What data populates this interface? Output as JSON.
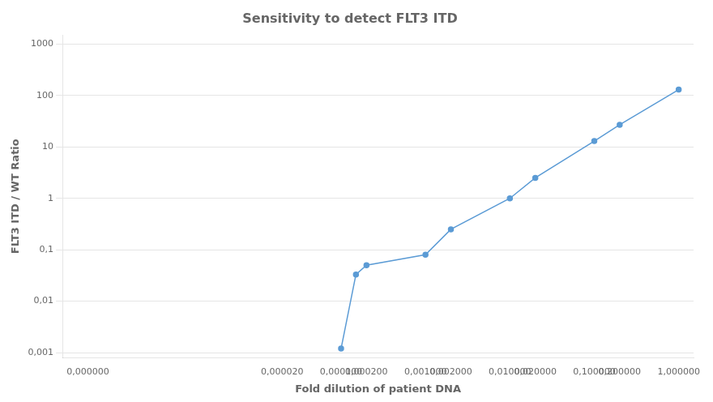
{
  "chart_data": {
    "type": "line",
    "title": "Sensitivity to detect FLT3 ITD",
    "x_label": "Fold dilution of patient DNA",
    "y_label": "FLT3 ITD / WT Ratio",
    "x": [
      0.0001,
      0.00015,
      0.0002,
      0.001,
      0.002,
      0.01,
      0.02,
      0.1,
      0.2,
      1.0
    ],
    "values": [
      0.0012,
      0.033,
      0.05,
      0.08,
      0.25,
      1.0,
      2.5,
      13.0,
      27.0,
      130.0
    ],
    "color": "#5b9bd5",
    "marker": "circle",
    "log": true,
    "grid": "y",
    "xlim": [
      5e-08,
      1.5
    ],
    "xticks": [
      {
        "value": 1e-07,
        "label": "0,000000"
      },
      {
        "value": 2e-05,
        "label": "0,000020"
      },
      {
        "value": 0.0001,
        "label": "0,000100"
      },
      {
        "value": 0.0002,
        "label": "0,000200"
      },
      {
        "value": 0.001,
        "label": "0,001000"
      },
      {
        "value": 0.002,
        "label": "0,002000"
      },
      {
        "value": 0.01,
        "label": "0,010000"
      },
      {
        "value": 0.02,
        "label": "0,020000"
      },
      {
        "value": 0.1,
        "label": "0,100000"
      },
      {
        "value": 0.2,
        "label": "0,200000"
      },
      {
        "value": 1.0,
        "label": "1,000000"
      }
    ],
    "ylim": [
      0.0008,
      1500
    ],
    "yticks": [
      {
        "value": 0.001,
        "label": "0,001"
      },
      {
        "value": 0.01,
        "label": "0,01"
      },
      {
        "value": 0.1,
        "label": "0,1"
      },
      1,
      10,
      100,
      1000
    ]
  }
}
